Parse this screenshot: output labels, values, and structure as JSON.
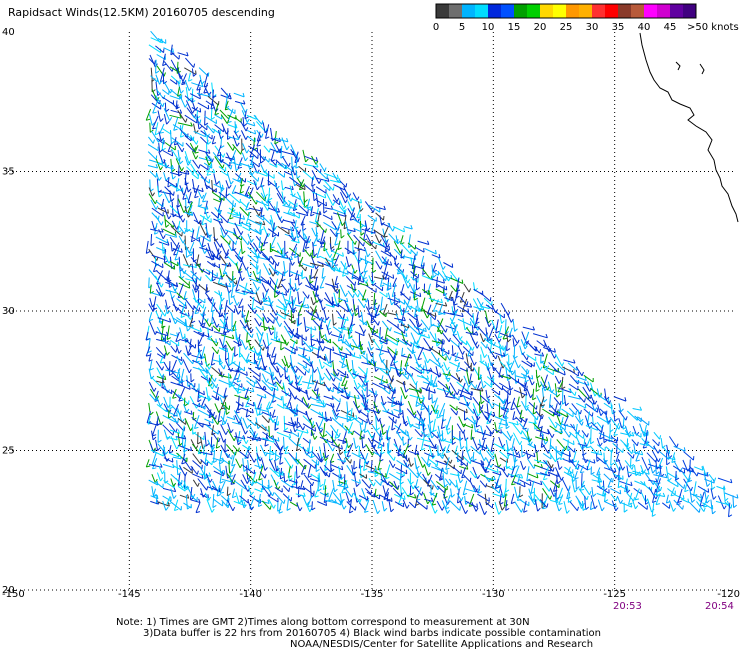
{
  "title": "Rapidsact Winds(12.5KM) 20160705 descending",
  "colorbar": {
    "labels": [
      "0",
      "5",
      "10",
      "15",
      "20",
      "25",
      "30",
      "35",
      "40",
      "45",
      ">50 knots"
    ],
    "colors": [
      "#3a3a3a",
      "#6e6e6e",
      "#00b4ff",
      "#00dcff",
      "#0028dc",
      "#0050ff",
      "#00a000",
      "#00d000",
      "#ffd800",
      "#ffff00",
      "#ff9800",
      "#ffb000",
      "#ff3030",
      "#ff0000",
      "#8a3a2a",
      "#b85a3a",
      "#ff00ff",
      "#d000d0",
      "#6000a0",
      "#400080"
    ]
  },
  "axes": {
    "lon_ticks": [
      "-150",
      "-145",
      "-140",
      "-135",
      "-130",
      "-125",
      "-120"
    ],
    "lat_ticks": [
      "40",
      "35",
      "30",
      "25",
      "20"
    ]
  },
  "times": {
    "t1": "20:53",
    "t2": "20:54"
  },
  "notes": {
    "line1": "Note: 1) Times are GMT 2)Times along bottom correspond to measurement at 30N",
    "line2": "3)Data buffer is 22 hrs from 20160705 4) Black wind barbs indicate possible contamination",
    "line3": "NOAA/NESDIS/Center for Satellite Applications and Research"
  }
}
